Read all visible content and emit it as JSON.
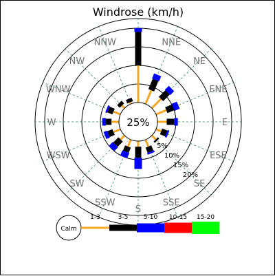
{
  "chart_data": {
    "type": "windrose",
    "title": "Windrose (km/h)",
    "directions": [
      "N",
      "NNE",
      "NE",
      "ENE",
      "E",
      "ESE",
      "SE",
      "SSE",
      "S",
      "SSW",
      "SW",
      "WSW",
      "W",
      "WNW",
      "NW",
      "NNW"
    ],
    "ring_labels": [
      "5%",
      "10%",
      "15%",
      "20%"
    ],
    "calm": {
      "label": "25%"
    },
    "speed_bins": [
      {
        "label": "1-3",
        "color": "#f5a623"
      },
      {
        "label": "3-5",
        "color": "#000000"
      },
      {
        "label": "5-10",
        "color": "#0000ff"
      },
      {
        "label": "10-15",
        "color": "#ff0000"
      },
      {
        "label": "15-20",
        "color": "#00ff00"
      }
    ],
    "values_cumulative": [
      [
        10,
        19,
        20
      ],
      [
        4,
        7,
        8.5
      ],
      [
        3.5,
        6,
        7.5
      ],
      [
        3,
        5,
        6.5
      ],
      [
        2.5,
        4.5,
        5.5
      ],
      [
        1.5,
        3,
        3.5
      ],
      [
        1.5,
        2,
        2
      ],
      [
        2,
        3.5,
        4
      ],
      [
        1.5,
        4.5,
        7.5
      ],
      [
        2,
        3.5,
        5
      ],
      [
        1.5,
        3.5,
        5
      ],
      [
        2,
        3.5,
        4.5
      ],
      [
        2,
        3.5,
        4.5
      ],
      [
        2,
        3.5,
        4
      ],
      [
        1,
        2,
        2
      ],
      [
        0.5,
        1.5,
        1.5
      ]
    ],
    "rlim": [
      0,
      25
    ],
    "grid": true,
    "legend": "bottom",
    "legend_calm_label": "Calm"
  }
}
